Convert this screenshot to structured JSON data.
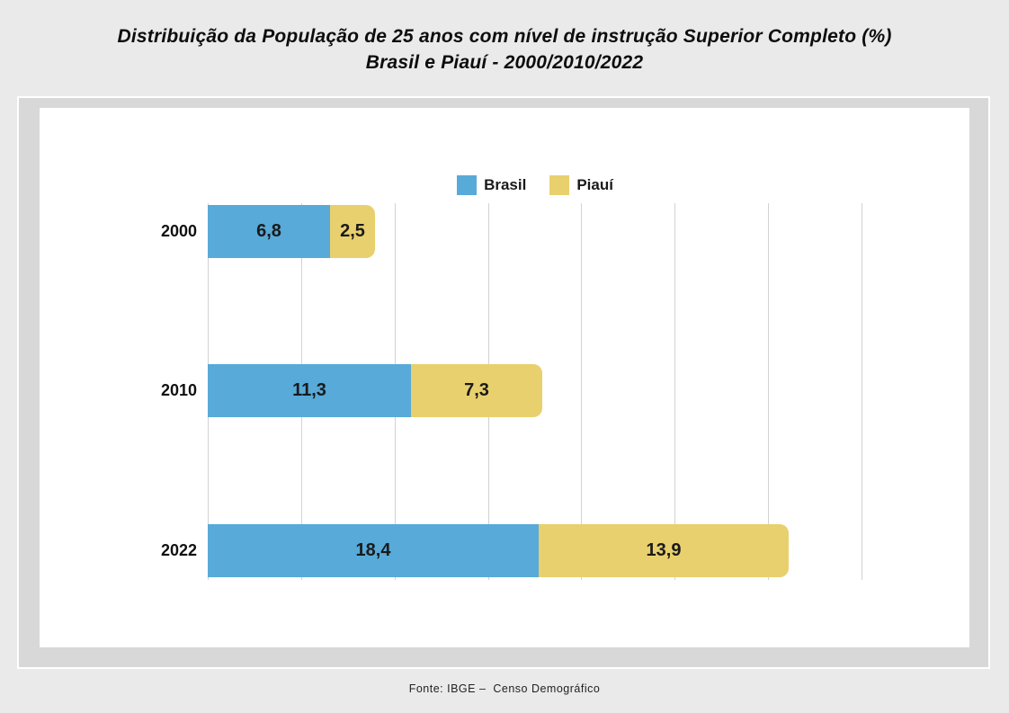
{
  "title": {
    "line1": "Distribuição da População de 25 anos com nível de instrução Superior Completo (%)",
    "line2": "Brasil e Piauí - 2000/2010/2022"
  },
  "legend": {
    "position": "top-center",
    "items": [
      {
        "label": "Brasil",
        "color": "#58aad8"
      },
      {
        "label": "Piauí",
        "color": "#e9d06e"
      }
    ]
  },
  "chart_data": {
    "type": "bar",
    "orientation": "horizontal",
    "stacked": true,
    "title": "Distribuição da População de 25 anos com nível de instrução Superior Completo (%) Brasil e Piauí - 2000/2010/2022",
    "categories": [
      "2000",
      "2010",
      "2022"
    ],
    "series": [
      {
        "name": "Brasil",
        "color": "#58aad8",
        "values": [
          6.8,
          11.3,
          18.4
        ],
        "labels": [
          "6,8",
          "11,3",
          "18,4"
        ]
      },
      {
        "name": "Piauí",
        "color": "#e9d06e",
        "values": [
          2.5,
          7.3,
          13.9
        ],
        "labels": [
          "2,5",
          "7,3",
          "13,9"
        ]
      }
    ],
    "xlabel": "",
    "ylabel": "",
    "xlim": [
      0,
      36.4
    ],
    "gridline_count": 8,
    "grid": true,
    "axis_tick_labels_shown": false,
    "legend_position": "top-center"
  },
  "footer": {
    "source": "Fonte: IBGE –  Censo Demográfico"
  }
}
